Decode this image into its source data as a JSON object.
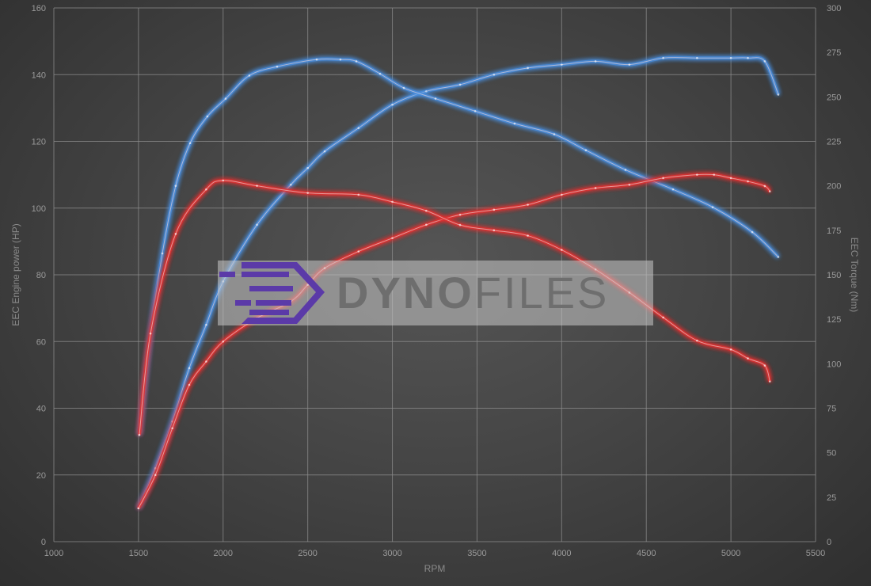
{
  "chart_data": {
    "type": "line",
    "xlabel": "RPM",
    "ylabel": "EEC Engine power (HP)",
    "y2label": "EEC Torque (Nm)",
    "xlim": [
      1000,
      5500
    ],
    "ylim": [
      0,
      160
    ],
    "y2lim": [
      0,
      300
    ],
    "xticks": [
      1000,
      1500,
      2000,
      2500,
      3000,
      3500,
      4000,
      4500,
      5000,
      5500
    ],
    "yticks": [
      0,
      20,
      40,
      60,
      80,
      100,
      120,
      140,
      160
    ],
    "y2ticks": [
      0,
      25,
      50,
      75,
      100,
      125,
      150,
      175,
      200,
      225,
      250,
      275,
      300
    ],
    "grid": true,
    "colors": {
      "tuned": "#4a8fe0",
      "stock": "#e03030"
    },
    "series": [
      {
        "axis": "left",
        "color": "tuned",
        "x": [
          1500,
          1600,
          1700,
          1800,
          1900,
          2000,
          2200,
          2400,
          2500,
          2600,
          2800,
          3000,
          3200,
          3400,
          3600,
          3800,
          4000,
          4200,
          4400,
          4600,
          4800,
          5000,
          5100,
          5200,
          5280
        ],
        "values": [
          10,
          22,
          36,
          52,
          65,
          78,
          95,
          107,
          112,
          117,
          124,
          131,
          135,
          137,
          140,
          142,
          143,
          144,
          143,
          145,
          145,
          145,
          145,
          144,
          134
        ]
      },
      {
        "axis": "right",
        "color": "tuned",
        "x": [
          1505,
          1571,
          1641,
          1720,
          1805,
          1907,
          2015,
          2155,
          2319,
          2553,
          2693,
          2787,
          2927,
          3068,
          3255,
          3489,
          3722,
          3956,
          4143,
          4377,
          4658,
          4892,
          5126,
          5280
        ],
        "values": [
          60,
          117,
          162,
          200,
          224,
          239,
          249,
          262,
          267,
          271,
          271,
          270,
          263,
          255,
          249,
          242,
          235,
          229,
          220,
          209,
          198,
          188,
          174,
          160
        ]
      },
      {
        "axis": "left",
        "color": "stock",
        "x": [
          1500,
          1600,
          1700,
          1800,
          1900,
          2000,
          2200,
          2400,
          2500,
          2600,
          2800,
          3000,
          3200,
          3400,
          3600,
          3800,
          4000,
          4200,
          4400,
          4600,
          4800,
          4900,
          5000,
          5100,
          5200,
          5230
        ],
        "values": [
          10,
          20,
          34,
          47,
          54,
          60,
          67,
          72,
          77,
          82,
          87,
          91,
          95,
          98,
          99.5,
          101,
          104,
          106,
          107,
          109,
          110,
          110,
          109,
          108,
          106.6,
          105
        ]
      },
      {
        "axis": "right",
        "color": "stock",
        "x": [
          1505,
          1571,
          1720,
          1900,
          2000,
          2200,
          2500,
          2800,
          3000,
          3200,
          3400,
          3600,
          3800,
          4000,
          4200,
          4400,
          4600,
          4800,
          5000,
          5100,
          5200,
          5230
        ],
        "values": [
          60,
          117,
          173,
          198,
          203,
          200,
          196,
          195,
          191,
          186,
          178,
          175,
          172,
          164,
          153,
          140,
          126,
          113,
          108,
          103,
          99,
          90
        ]
      }
    ]
  },
  "watermark": "DYNOFILES"
}
